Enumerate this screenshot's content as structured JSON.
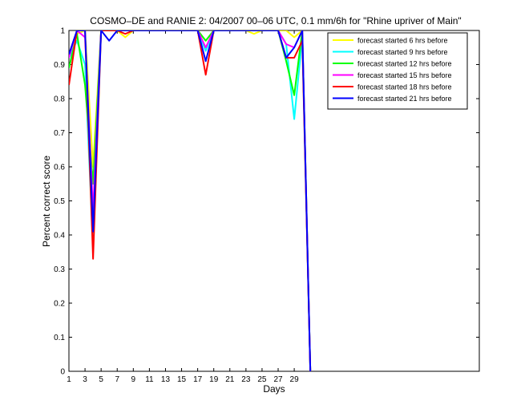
{
  "chart_data": {
    "type": "line",
    "title": "COSMO–DE and RANIE 2: 04/2007 00–06 UTC, 0.1 mm/6h for \"Rhine upriver of Main\"",
    "xlabel": "Days",
    "ylabel": "Percent correct score",
    "xlim": [
      1,
      52
    ],
    "ylim": [
      0,
      1
    ],
    "xticks": [
      1,
      3,
      5,
      7,
      9,
      11,
      13,
      15,
      17,
      19,
      21,
      23,
      25,
      27,
      29
    ],
    "yticks": [
      0,
      0.1,
      0.2,
      0.3,
      0.4,
      0.5,
      0.6,
      0.7,
      0.8,
      0.9,
      1
    ],
    "xtick_labels": [
      "1",
      "3",
      "5",
      "7",
      "9",
      "11",
      "13",
      "15",
      "17",
      "19",
      "21",
      "23",
      "25",
      "27",
      "29"
    ],
    "ytick_labels": [
      "0",
      "0.1",
      "0.2",
      "0.3",
      "0.4",
      "0.5",
      "0.6",
      "0.7",
      "0.8",
      "0.9",
      "1"
    ],
    "legend_position": "top-right",
    "grid": false,
    "series": [
      {
        "name": "forecast started 6 hrs before",
        "color": "#ffff00",
        "x": [
          1,
          2,
          3,
          4,
          5,
          6,
          7,
          8,
          9,
          10,
          11,
          12,
          13,
          14,
          15,
          16,
          17,
          18,
          19,
          20,
          21,
          22,
          23,
          24,
          25,
          26,
          27,
          28,
          29,
          30,
          31
        ],
        "y": [
          0.93,
          0.99,
          1.0,
          0.6,
          1.0,
          1.0,
          1.0,
          0.98,
          1.0,
          1.0,
          1.0,
          1.0,
          1.0,
          1.0,
          1.0,
          1.0,
          1.0,
          0.97,
          1.0,
          1.0,
          1.0,
          1.0,
          1.0,
          0.99,
          1.0,
          1.0,
          1.0,
          1.0,
          0.98,
          1.0,
          0.0
        ]
      },
      {
        "name": "forecast started 9 hrs before",
        "color": "#00ffff",
        "x": [
          1,
          2,
          3,
          4,
          5,
          6,
          7,
          8,
          9,
          10,
          11,
          12,
          13,
          14,
          15,
          16,
          17,
          18,
          19,
          20,
          21,
          22,
          23,
          24,
          25,
          26,
          27,
          28,
          29,
          30,
          31
        ],
        "y": [
          0.92,
          0.97,
          0.9,
          0.36,
          1.0,
          1.0,
          1.0,
          1.0,
          1.0,
          1.0,
          1.0,
          1.0,
          1.0,
          1.0,
          1.0,
          1.0,
          1.0,
          0.94,
          1.0,
          1.0,
          1.0,
          1.0,
          1.0,
          1.0,
          1.0,
          1.0,
          1.0,
          0.96,
          0.74,
          0.98,
          0.0
        ]
      },
      {
        "name": "forecast started 12 hrs before",
        "color": "#00ff00",
        "x": [
          1,
          2,
          3,
          4,
          5,
          6,
          7,
          8,
          9,
          10,
          11,
          12,
          13,
          14,
          15,
          16,
          17,
          18,
          19,
          20,
          21,
          22,
          23,
          24,
          25,
          26,
          27,
          28,
          29,
          30,
          31
        ],
        "y": [
          0.89,
          0.99,
          0.84,
          0.55,
          1.0,
          1.0,
          1.0,
          1.0,
          1.0,
          1.0,
          1.0,
          1.0,
          1.0,
          1.0,
          1.0,
          1.0,
          1.0,
          0.97,
          1.0,
          1.0,
          1.0,
          1.0,
          1.0,
          1.0,
          1.0,
          1.0,
          1.0,
          0.91,
          0.81,
          1.0,
          0.0
        ]
      },
      {
        "name": "forecast started 15 hrs before",
        "color": "#ff00ff",
        "x": [
          1,
          2,
          3,
          4,
          5,
          6,
          7,
          8,
          9,
          10,
          11,
          12,
          13,
          14,
          15,
          16,
          17,
          18,
          19,
          20,
          21,
          22,
          23,
          24,
          25,
          26,
          27,
          28,
          29,
          30,
          31
        ],
        "y": [
          0.92,
          1.0,
          0.98,
          0.47,
          1.0,
          1.0,
          1.0,
          1.0,
          1.0,
          1.0,
          1.0,
          1.0,
          1.0,
          1.0,
          1.0,
          1.0,
          1.0,
          0.95,
          1.0,
          1.0,
          1.0,
          1.0,
          1.0,
          1.0,
          1.0,
          1.0,
          1.0,
          0.96,
          0.95,
          1.0,
          0.0
        ]
      },
      {
        "name": "forecast started 18 hrs before",
        "color": "#ff0000",
        "x": [
          1,
          2,
          3,
          4,
          5,
          6,
          7,
          8,
          9,
          10,
          11,
          12,
          13,
          14,
          15,
          16,
          17,
          18,
          19,
          20,
          21,
          22,
          23,
          24,
          25,
          26,
          27,
          28,
          29,
          30,
          31
        ],
        "y": [
          0.84,
          1.0,
          1.0,
          0.33,
          1.0,
          1.0,
          1.0,
          0.99,
          1.0,
          1.0,
          1.0,
          1.0,
          1.0,
          1.0,
          1.0,
          1.0,
          1.0,
          0.87,
          1.0,
          1.0,
          1.0,
          1.0,
          1.0,
          1.0,
          1.0,
          1.0,
          1.0,
          0.92,
          0.92,
          0.97,
          0.0
        ]
      },
      {
        "name": "forecast started 21 hrs before",
        "color": "#0000ff",
        "x": [
          1,
          2,
          3,
          4,
          5,
          6,
          7,
          8,
          9,
          10,
          11,
          12,
          13,
          14,
          15,
          16,
          17,
          18,
          19,
          20,
          21,
          22,
          23,
          24,
          25,
          26,
          27,
          28,
          29,
          30,
          31
        ],
        "y": [
          0.93,
          1.0,
          1.0,
          0.41,
          1.0,
          0.97,
          1.0,
          1.0,
          1.0,
          1.0,
          1.0,
          1.0,
          1.0,
          1.0,
          1.0,
          1.0,
          1.0,
          0.91,
          1.0,
          1.0,
          1.0,
          1.0,
          1.0,
          1.0,
          1.0,
          1.0,
          1.0,
          0.92,
          0.95,
          1.0,
          0.0
        ]
      }
    ]
  }
}
